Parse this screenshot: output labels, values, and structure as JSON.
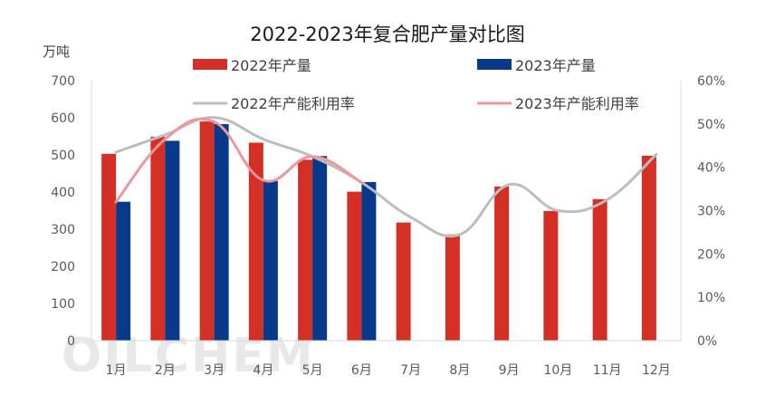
{
  "chart_data": {
    "type": "bar",
    "title": "2022-2023年复合肥产量对比图",
    "y_unit_label": "万吨",
    "categories": [
      "1月",
      "2月",
      "3月",
      "4月",
      "5月",
      "6月",
      "7月",
      "8月",
      "9月",
      "10月",
      "11月",
      "12月"
    ],
    "ylim": [
      0,
      700
    ],
    "yticks": [
      "0",
      "100",
      "200",
      "300",
      "400",
      "500",
      "600",
      "700"
    ],
    "y2lim": [
      0,
      60
    ],
    "y2ticks": [
      "0%",
      "10%",
      "20%",
      "30%",
      "40%",
      "50%",
      "60%"
    ],
    "grid": false,
    "legend_position": "top",
    "bar_series": [
      {
        "name": "2022年产量",
        "color": "#d42f24",
        "values": [
          503,
          549,
          590,
          533,
          487,
          401,
          318,
          286,
          415,
          349,
          381,
          498
        ]
      },
      {
        "name": "2023年产量",
        "color": "#073a8a",
        "values": [
          374,
          538,
          583,
          430,
          497,
          427,
          null,
          null,
          null,
          null,
          null,
          null
        ]
      }
    ],
    "line_series": [
      {
        "name": "2022年产能利用率",
        "color": "#bdbdbd",
        "axis": "right",
        "values": [
          43.5,
          47.5,
          51.5,
          46.5,
          42.5,
          36.5,
          28.5,
          24.5,
          36.0,
          30.0,
          32.5,
          43.0
        ]
      },
      {
        "name": "2023年产能利用率",
        "color": "#f0969a",
        "axis": "right",
        "values": [
          32.0,
          46.5,
          50.5,
          37.0,
          42.5,
          36.5,
          null,
          null,
          null,
          null,
          null,
          null
        ]
      }
    ],
    "watermark": "OILCHEM"
  }
}
